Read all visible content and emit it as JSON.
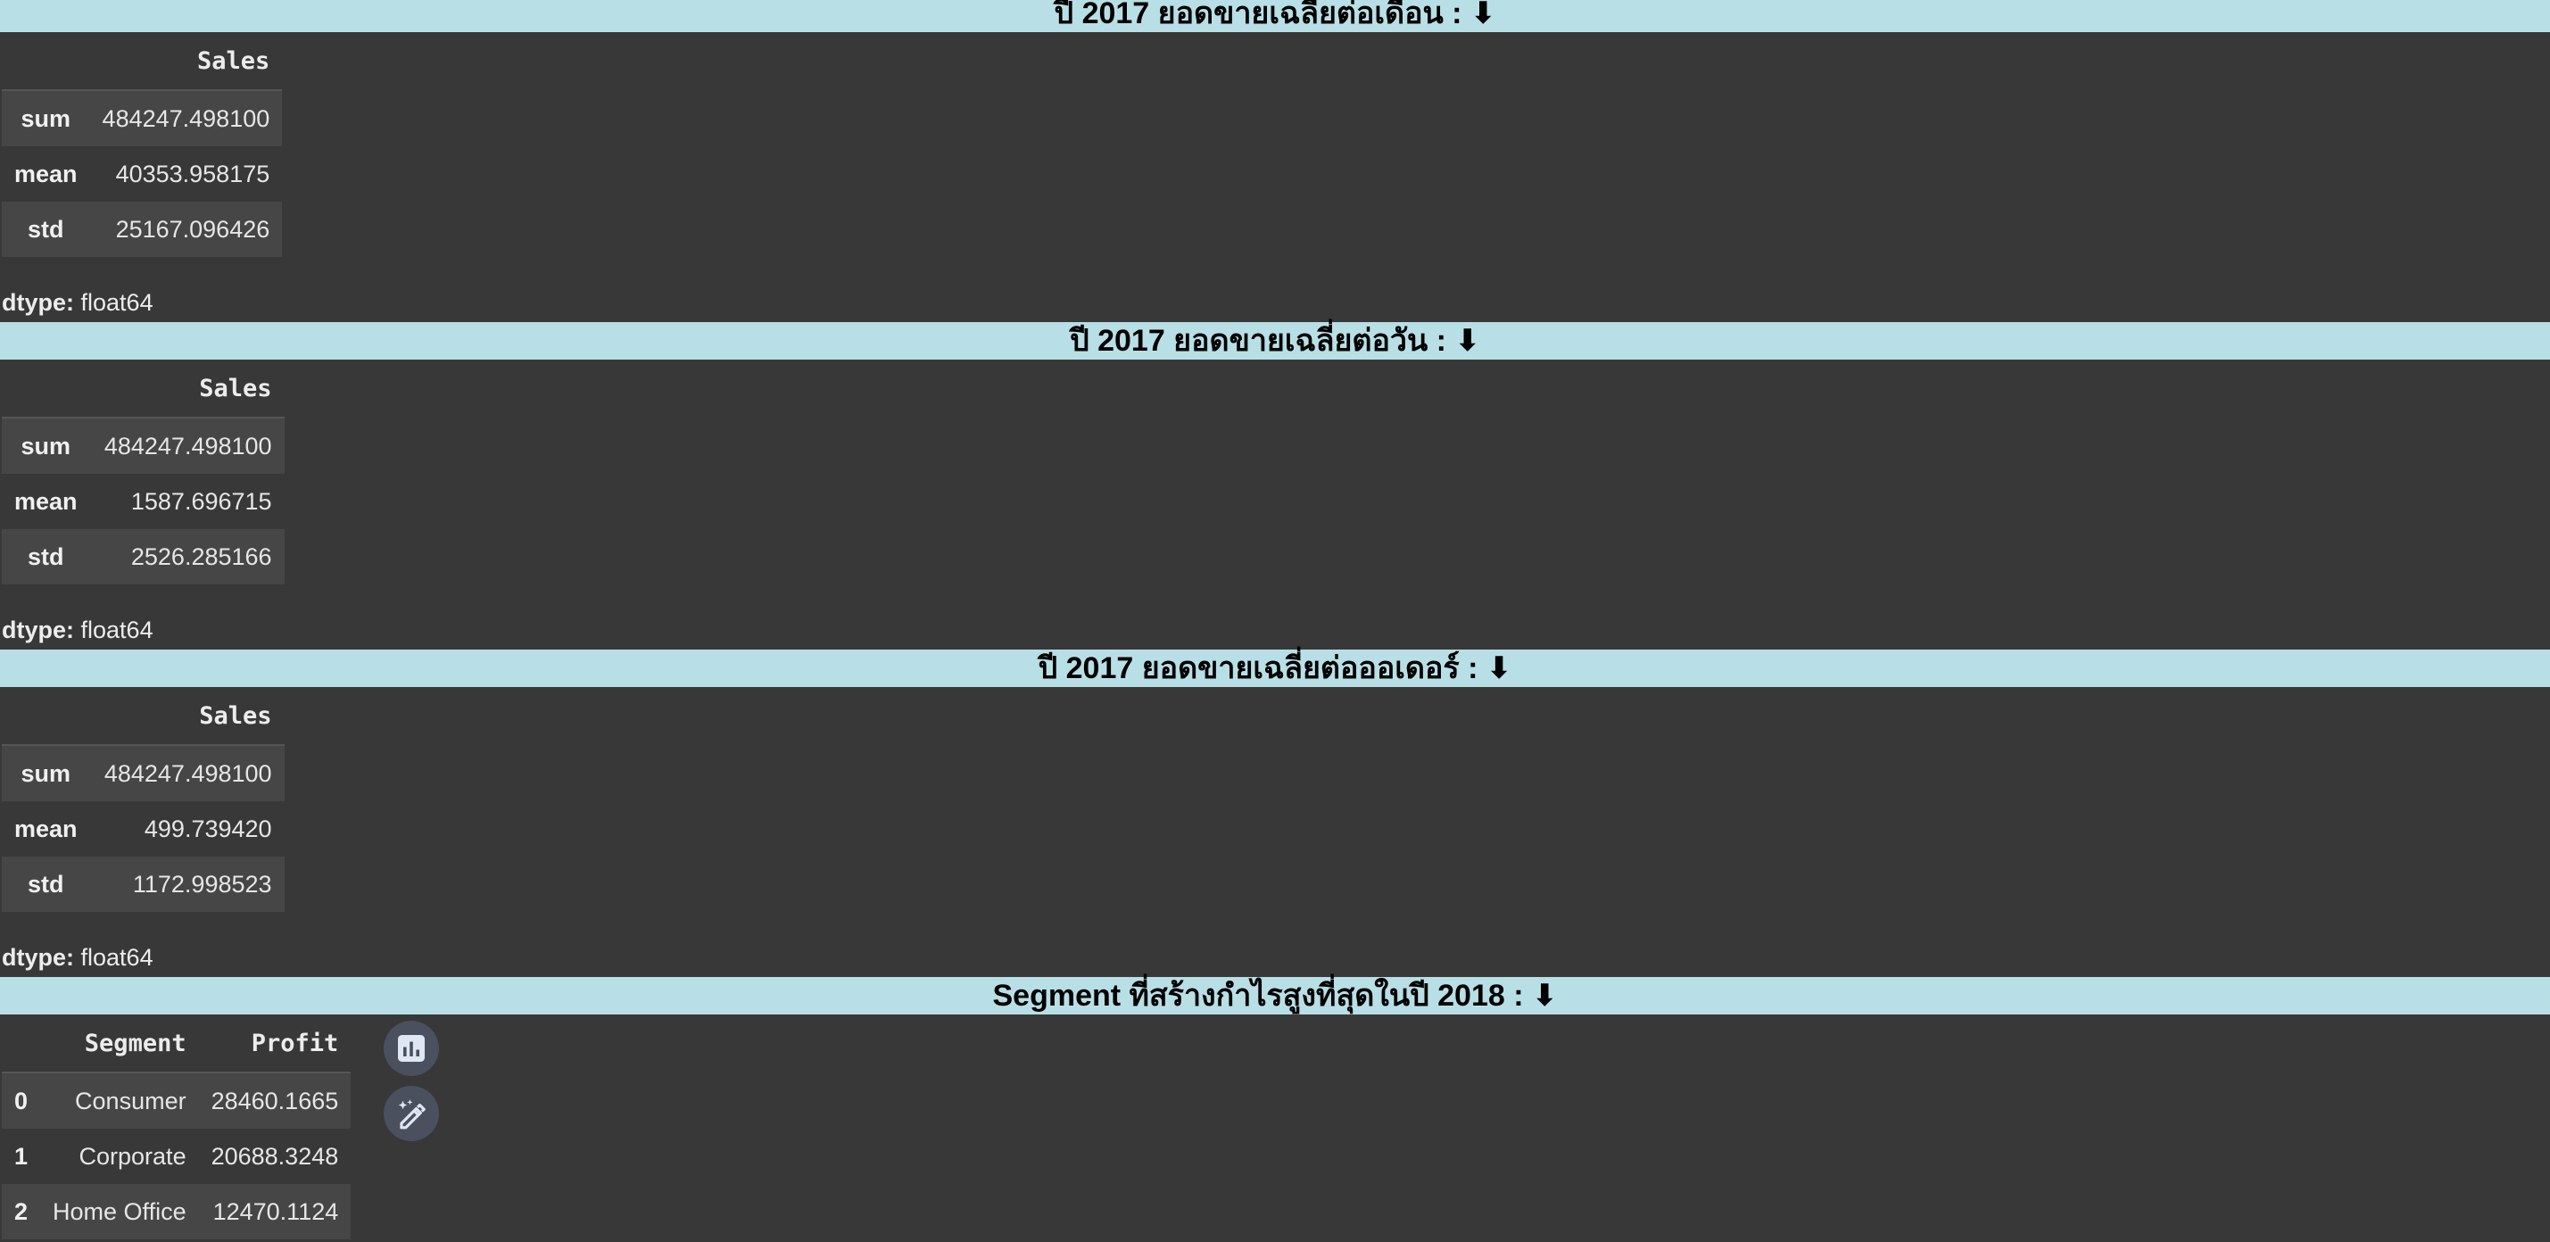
{
  "sections": [
    {
      "title": "ปี 2017 ยอดขายเฉลี่ยต่อเดือน : ⬇",
      "header": "Sales",
      "rows": [
        {
          "label": "sum",
          "value": "484247.498100"
        },
        {
          "label": "mean",
          "value": "40353.958175"
        },
        {
          "label": "std",
          "value": "25167.096426"
        }
      ],
      "dtype_label": "dtype:",
      "dtype_value": "float64"
    },
    {
      "title": "ปี 2017 ยอดขายเฉลี่ยต่อวัน : ⬇",
      "header": "Sales",
      "rows": [
        {
          "label": "sum",
          "value": "484247.498100"
        },
        {
          "label": "mean",
          "value": "1587.696715"
        },
        {
          "label": "std",
          "value": "2526.285166"
        }
      ],
      "dtype_label": "dtype:",
      "dtype_value": "float64"
    },
    {
      "title": "ปี 2017 ยอดขายเฉลี่ยต่อออเดอร์ : ⬇",
      "header": "Sales",
      "rows": [
        {
          "label": "sum",
          "value": "484247.498100"
        },
        {
          "label": "mean",
          "value": "499.739420"
        },
        {
          "label": "std",
          "value": "1172.998523"
        }
      ],
      "dtype_label": "dtype:",
      "dtype_value": "float64"
    }
  ],
  "segment": {
    "title": "Segment ที่สร้างกำไรสูงที่สุดในปี 2018 : ⬇",
    "columns": [
      "Segment",
      "Profit"
    ],
    "rows": [
      {
        "index": "0",
        "segment": "Consumer",
        "profit": "28460.1665"
      },
      {
        "index": "1",
        "segment": "Corporate",
        "profit": "20688.3248"
      },
      {
        "index": "2",
        "segment": "Home Office",
        "profit": "12470.1124"
      }
    ],
    "buttons": [
      "bar-chart-icon",
      "magic-wand-edit-icon"
    ]
  }
}
